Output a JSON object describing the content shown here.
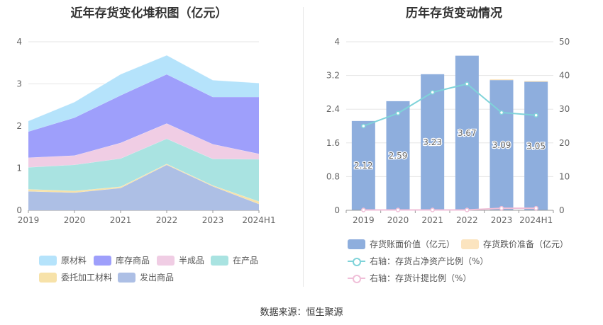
{
  "left_title": "近年存货变化堆积图（亿元）",
  "right_title": "历年存货变动情况",
  "source": "数据来源：恒生聚源",
  "chart_data": [
    {
      "type": "area",
      "title": "近年存货变化堆积图（亿元）",
      "categories": [
        "2019",
        "2020",
        "2021",
        "2022",
        "2023",
        "2024H1"
      ],
      "yticks": [
        "0",
        "1",
        "2",
        "3",
        "4"
      ],
      "ylim": [
        0,
        4
      ],
      "stack_order": [
        "发出商品",
        "委托加工材料",
        "在产品",
        "半成品",
        "库存商品",
        "原材料"
      ],
      "series": [
        {
          "name": "原材料",
          "color": "#b5e3fb",
          "values": [
            0.25,
            0.37,
            0.5,
            0.45,
            0.4,
            0.33
          ]
        },
        {
          "name": "库存商品",
          "color": "#9e9ffb",
          "values": [
            0.62,
            0.9,
            1.13,
            1.17,
            1.12,
            1.35
          ]
        },
        {
          "name": "半成品",
          "color": "#f0cde4",
          "values": [
            0.23,
            0.22,
            0.37,
            0.36,
            0.35,
            0.13
          ]
        },
        {
          "name": "在产品",
          "color": "#a9e3e1",
          "values": [
            0.52,
            0.62,
            0.67,
            0.6,
            0.63,
            1.0
          ]
        },
        {
          "name": "委托加工材料",
          "color": "#f7e2a9",
          "values": [
            0.05,
            0.04,
            0.03,
            0.02,
            0.02,
            0.06
          ]
        },
        {
          "name": "发出商品",
          "color": "#adbfe5",
          "values": [
            0.45,
            0.42,
            0.53,
            1.08,
            0.57,
            0.15
          ]
        }
      ],
      "legend": [
        "原材料",
        "库存商品",
        "半成品",
        "在产品",
        "委托加工材料",
        "发出商品"
      ]
    },
    {
      "type": "bar",
      "title": "历年存货变动情况",
      "categories": [
        "2019",
        "2020",
        "2021",
        "2022",
        "2023",
        "2024H1"
      ],
      "yticks_left": [
        "0",
        "0.8",
        "1.6",
        "2.4",
        "3.2",
        "4"
      ],
      "yticks_right": [
        "0",
        "10",
        "20",
        "30",
        "40",
        "50"
      ],
      "ylim_left": [
        0,
        4
      ],
      "ylim_right": [
        0,
        50
      ],
      "bars": {
        "name": "存货账面价值（亿元）",
        "color": "#8eaedd",
        "values": [
          2.12,
          2.59,
          3.23,
          3.67,
          3.09,
          3.05
        ],
        "labels": [
          "2.12",
          "2.59",
          "3.23",
          "3.67",
          "3.09",
          "3.05"
        ]
      },
      "bars2": {
        "name": "存货跌价准备（亿元）",
        "color": "#fbe4bf",
        "values": [
          0.0,
          0.0,
          0.0,
          0.0,
          0.02,
          0.02
        ]
      },
      "line1": {
        "name": "右轴：存货占净资产比例（%）",
        "color": "#7fd3d9",
        "values": [
          25.0,
          28.8,
          35.0,
          37.5,
          29.0,
          28.2
        ]
      },
      "line2": {
        "name": "右轴：存货计提比例（%）",
        "color": "#f0bfd8",
        "values": [
          0.1,
          0.1,
          0.1,
          0.1,
          0.6,
          0.6
        ]
      }
    }
  ]
}
